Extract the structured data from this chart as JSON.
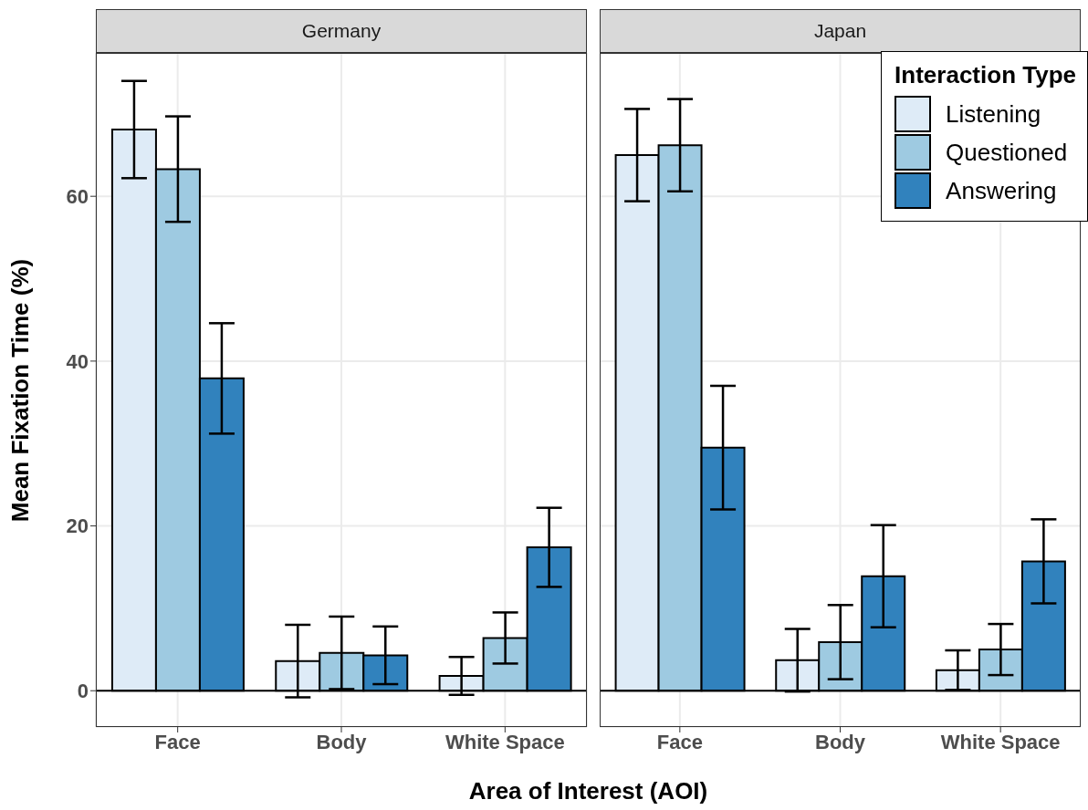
{
  "chart_data": [
    {
      "type": "bar",
      "title": "Germany",
      "xlabel": "Area of Interest (AOI)",
      "ylabel": "Mean Fixation Time (%)",
      "categories": [
        "Face",
        "Body",
        "White Space"
      ],
      "ylim": [
        -4.4,
        77.4
      ],
      "yticks": [
        0,
        20,
        40,
        60
      ],
      "grid": true,
      "legend": false,
      "ref_lines": [
        {
          "axis": "y",
          "value": 0,
          "color": "#000000"
        }
      ],
      "series": [
        {
          "color": "#deebf7",
          "values": [
            68.1,
            3.6,
            1.8
          ],
          "errors": [
            5.9,
            4.4,
            2.3
          ]
        },
        {
          "color": "#9ecae1",
          "values": [
            63.3,
            4.6,
            6.4
          ],
          "errors": [
            6.4,
            4.4,
            3.1
          ]
        },
        {
          "color": "#3182bd",
          "values": [
            37.9,
            4.3,
            17.4
          ],
          "errors": [
            6.7,
            3.5,
            4.8
          ]
        }
      ]
    },
    {
      "type": "bar",
      "title": "Japan",
      "categories": [
        "Face",
        "Body",
        "White Space"
      ],
      "ylim": [
        -4.4,
        77.4
      ],
      "yticks": [
        0,
        20,
        40,
        60
      ],
      "grid": true,
      "tick_labels": "x",
      "legend": "top right",
      "legend_title": "Interaction Type",
      "ref_lines": [
        {
          "axis": "y",
          "value": 0,
          "color": "#000000"
        }
      ],
      "series": [
        {
          "name": "Listening",
          "color": "#deebf7",
          "values": [
            65.0,
            3.7,
            2.5
          ],
          "errors": [
            5.6,
            3.8,
            2.4
          ]
        },
        {
          "name": "Questioned",
          "color": "#9ecae1",
          "values": [
            66.2,
            5.9,
            5.0
          ],
          "errors": [
            5.6,
            4.5,
            3.1
          ]
        },
        {
          "name": "Answering",
          "color": "#3182bd",
          "values": [
            29.5,
            13.9,
            15.7
          ],
          "errors": [
            7.5,
            6.2,
            5.1
          ]
        }
      ]
    }
  ]
}
